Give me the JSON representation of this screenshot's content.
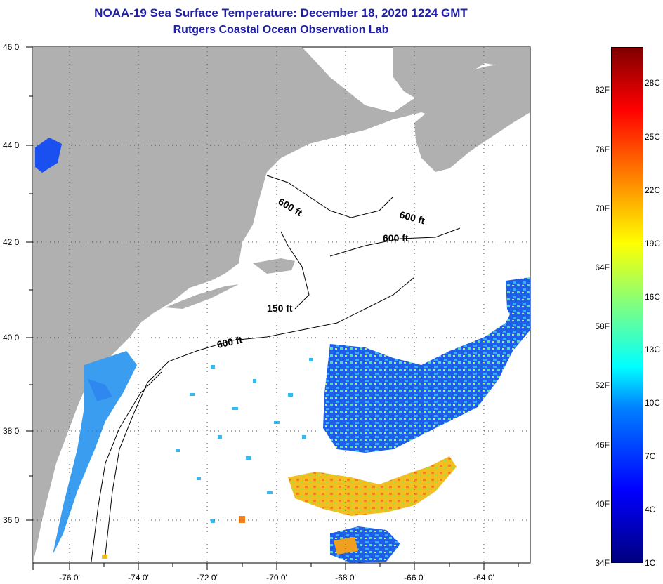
{
  "title_line1": "NOAA-19 Sea Surface Temperature:  December 18, 2020 1224 GMT",
  "title_line2": "Rutgers Coastal Ocean Observation Lab",
  "lat_labels": [
    "46 0'",
    "44 0'",
    "42 0'",
    "40 0'",
    "38 0'",
    "36 0'"
  ],
  "lon_labels": [
    "-76 0'",
    "-74 0'",
    "-72 0'",
    "-70 0'",
    "-68 0'",
    "-66 0'",
    "-64 0'"
  ],
  "contours": [
    "600 ft",
    "600 ft",
    "600 ft",
    "150 ft",
    "600 ft"
  ],
  "colorbar": {
    "fahrenheit": [
      "82F",
      "76F",
      "70F",
      "64F",
      "58F",
      "52F",
      "46F",
      "40F",
      "34F"
    ],
    "celsius": [
      "28C",
      "25C",
      "22C",
      "19C",
      "16C",
      "13C",
      "10C",
      "7C",
      "4C",
      "1C"
    ]
  },
  "colors": {
    "land": "#b0b0b0",
    "ocean": "#ffffff",
    "title": "#1f1fa8"
  }
}
